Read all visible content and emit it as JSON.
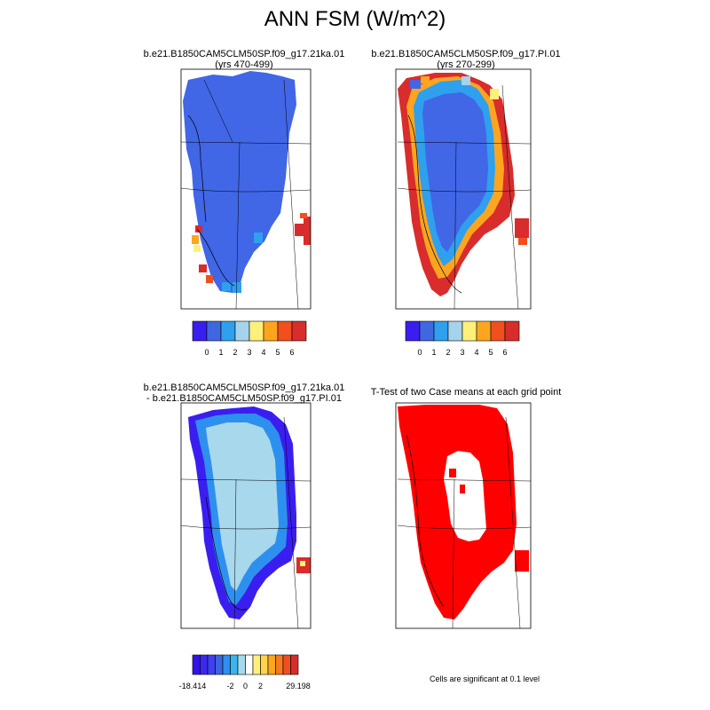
{
  "figure": {
    "title": "ANN FSM (W/m^2)",
    "footnote": "Cells are significant at 0.1 level"
  },
  "panels": {
    "p1": {
      "line1": "b.e21.B1850CAM5CLM50SP.f09_g17.21ka.01",
      "line2": "(yrs 470-499)"
    },
    "p2": {
      "line1": "b.e21.B1850CAM5CLM50SP.f09_g17.PI.01",
      "line2": "(yrs 270-299)"
    },
    "p3": {
      "line1": "b.e21.B1850CAM5CLM50SP.f09_g17.21ka.01",
      "line2": "- b.e21.B1850CAM5CLM50SP.f09_g17.PI.01"
    },
    "p4": {
      "line1": "T-Test of two Case means at each grid point"
    }
  },
  "colorbars": {
    "top": {
      "colors": [
        "#3a1ef0",
        "#3f68e0",
        "#2ea0ee",
        "#a6d3ec",
        "#fff07a",
        "#fda51f",
        "#f14f1e",
        "#d92c2c"
      ],
      "labels": [
        "0",
        "1",
        "2",
        "3",
        "4",
        "5",
        "6"
      ]
    },
    "diff": {
      "colors": [
        "#3214e6",
        "#3c28f0",
        "#4040f0",
        "#3c64e0",
        "#2e90ee",
        "#3cb4f0",
        "#a8d8ec",
        "#ffffff",
        "#fff07a",
        "#ffd250",
        "#fda51f",
        "#f67a1e",
        "#f14f1e",
        "#d92c2c"
      ],
      "labels": [
        "-18.414",
        "-2",
        "0",
        "2",
        "29.198"
      ]
    }
  },
  "colors": {
    "field_bg": "#4166e6",
    "sig": "#ff0000"
  }
}
